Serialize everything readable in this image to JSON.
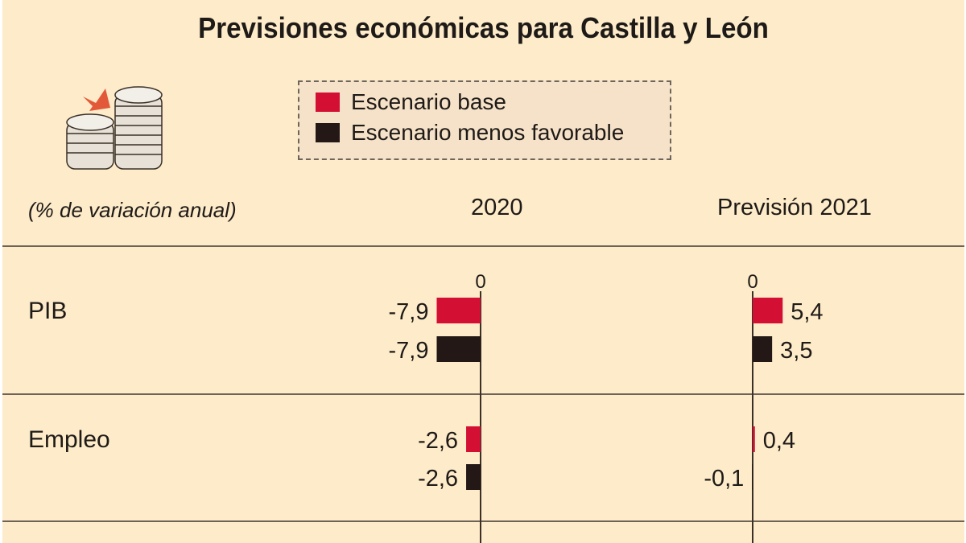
{
  "title": "Previsiones económicas para Castilla y León",
  "units_label": "(% de variación anual)",
  "legend": {
    "items": [
      {
        "label": "Escenario base",
        "color": "#d40f34"
      },
      {
        "label": "Escenario menos favorable",
        "color": "#231815"
      }
    ]
  },
  "icon": "coins-growth-icon",
  "chart_data": {
    "type": "bar",
    "orientation": "horizontal",
    "title": "Previsiones económicas para Castilla y León",
    "ylabel": "(% de variación anual)",
    "panels": [
      "2020",
      "Previsión 2021"
    ],
    "categories": [
      "PIB",
      "Empleo"
    ],
    "zero_tick_label": "0",
    "series": [
      {
        "name": "Escenario base",
        "color": "#d40f34",
        "values": {
          "2020": [
            -7.9,
            -2.6
          ],
          "Previsión 2021": [
            5.4,
            0.4
          ]
        },
        "labels": {
          "2020": [
            "-7,9",
            "-2,6"
          ],
          "Previsión 2021": [
            "5,4",
            "0,4"
          ]
        }
      },
      {
        "name": "Escenario menos favorable",
        "color": "#231815",
        "values": {
          "2020": [
            -7.9,
            -2.6
          ],
          "Previsión 2021": [
            3.5,
            -0.1
          ]
        },
        "labels": {
          "2020": [
            "-7,9",
            "-2,6"
          ],
          "Previsión 2021": [
            "3,5",
            "-0,1"
          ]
        }
      }
    ]
  },
  "colors": {
    "background": "#fdebc9",
    "legend_background": "#f6e2c8",
    "axis": "#3a3027",
    "text": "#1e1a17"
  }
}
